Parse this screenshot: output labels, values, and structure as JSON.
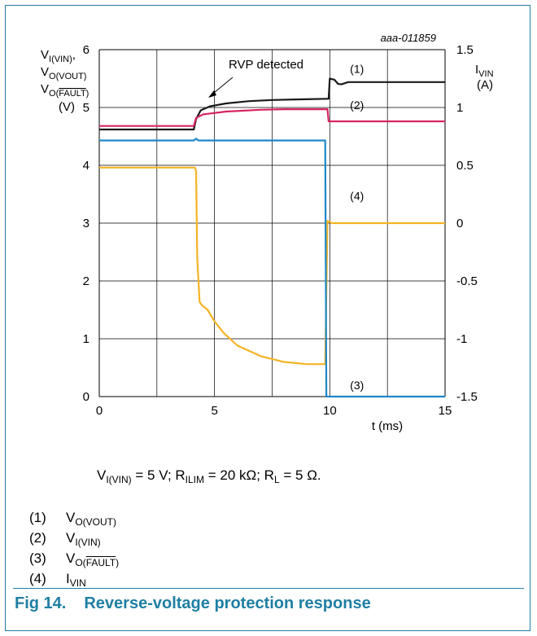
{
  "figure": {
    "number": "Fig 14.",
    "title": "Reverse-voltage protection response",
    "ref": "aaa-011859"
  },
  "conditions": {
    "v_prefix": "V",
    "v_sub": "I(VIN)",
    "v_text": " = 5 V; R",
    "r_sub": "ILIM",
    "r_text": " = 20 kΩ; R",
    "rl_sub": "L",
    "rl_text": " = 5 Ω."
  },
  "legend": [
    {
      "num": "(1)",
      "base": "V",
      "sub": "O(VOUT)"
    },
    {
      "num": "(2)",
      "base": "V",
      "sub": "I(VIN)"
    },
    {
      "num": "(3)",
      "base": "V",
      "sub_pre": "O(",
      "sub_over": "FAULT",
      "sub_post": ")"
    },
    {
      "num": "(4)",
      "base": "I",
      "sub": "VIN"
    }
  ],
  "chart_data": {
    "type": "line",
    "xlabel": "t (ms)",
    "xlim": [
      0,
      15
    ],
    "x_ticks": [
      "0",
      "5",
      "10",
      "15"
    ],
    "y_left": {
      "label_lines": [
        "V_I(VIN),",
        "V_O(VOUT)",
        "V_O(FAULT)",
        "(V)"
      ],
      "lim": [
        0,
        6
      ],
      "ticks": [
        "0",
        "1",
        "2",
        "3",
        "4",
        "5",
        "6"
      ]
    },
    "y_right": {
      "label_lines": [
        "I_VIN",
        "(A)"
      ],
      "lim": [
        -1.5,
        1.5
      ],
      "ticks": [
        "-1.5",
        "-1",
        "-0.5",
        "0",
        "0.5",
        "1",
        "1.5"
      ]
    },
    "grid": true,
    "annotation": {
      "text": "RVP detected",
      "x": 4.7,
      "y": 5.0
    },
    "series": [
      {
        "name": "(1)",
        "axis": "left",
        "color": "#1a1a1a",
        "label_pos": [
          11.3,
          5.6
        ],
        "points": [
          [
            0,
            4.62
          ],
          [
            4.1,
            4.62
          ],
          [
            4.2,
            4.8
          ],
          [
            4.4,
            4.95
          ],
          [
            4.8,
            5.02
          ],
          [
            5.5,
            5.07
          ],
          [
            6.5,
            5.11
          ],
          [
            7.5,
            5.13
          ],
          [
            8.5,
            5.14
          ],
          [
            9.9,
            5.15
          ],
          [
            9.95,
            5.15
          ],
          [
            10.0,
            5.5
          ],
          [
            10.2,
            5.48
          ],
          [
            10.35,
            5.41
          ],
          [
            10.5,
            5.4
          ],
          [
            10.8,
            5.44
          ],
          [
            11.3,
            5.44
          ],
          [
            15,
            5.44
          ]
        ]
      },
      {
        "name": "(2)",
        "axis": "left",
        "color": "#d6245e",
        "label_pos": [
          11.3,
          4.97
        ],
        "points": [
          [
            0,
            4.68
          ],
          [
            4.1,
            4.68
          ],
          [
            4.2,
            4.82
          ],
          [
            4.5,
            4.88
          ],
          [
            5.5,
            4.93
          ],
          [
            7,
            4.96
          ],
          [
            8,
            4.97
          ],
          [
            9.9,
            4.97
          ],
          [
            9.95,
            4.76
          ],
          [
            15,
            4.76
          ]
        ]
      },
      {
        "name": "(3)",
        "axis": "left",
        "color": "#1e88c8",
        "label_pos": [
          11.3,
          0.13
        ],
        "points": [
          [
            0,
            4.43
          ],
          [
            4.1,
            4.43
          ],
          [
            4.2,
            4.46
          ],
          [
            4.3,
            4.43
          ],
          [
            9.8,
            4.43
          ],
          [
            9.85,
            0
          ],
          [
            15,
            0
          ]
        ]
      },
      {
        "name": "(4)",
        "axis": "right",
        "color": "#f5b324",
        "label_pos": [
          11.3,
          0.2
        ],
        "points": [
          [
            0,
            0.48
          ],
          [
            4.15,
            0.48
          ],
          [
            4.2,
            0.45
          ],
          [
            4.25,
            -0.3
          ],
          [
            4.35,
            -0.68
          ],
          [
            4.45,
            -0.71
          ],
          [
            4.7,
            -0.75
          ],
          [
            5.0,
            -0.85
          ],
          [
            5.4,
            -0.95
          ],
          [
            6.0,
            -1.06
          ],
          [
            7.0,
            -1.15
          ],
          [
            8.0,
            -1.2
          ],
          [
            9.0,
            -1.22
          ],
          [
            9.8,
            -1.22
          ],
          [
            9.9,
            0.02
          ],
          [
            10.1,
            0
          ],
          [
            15,
            0
          ]
        ]
      }
    ]
  },
  "colors": {
    "brand": "#1f7fa3",
    "grid": "#000000"
  }
}
